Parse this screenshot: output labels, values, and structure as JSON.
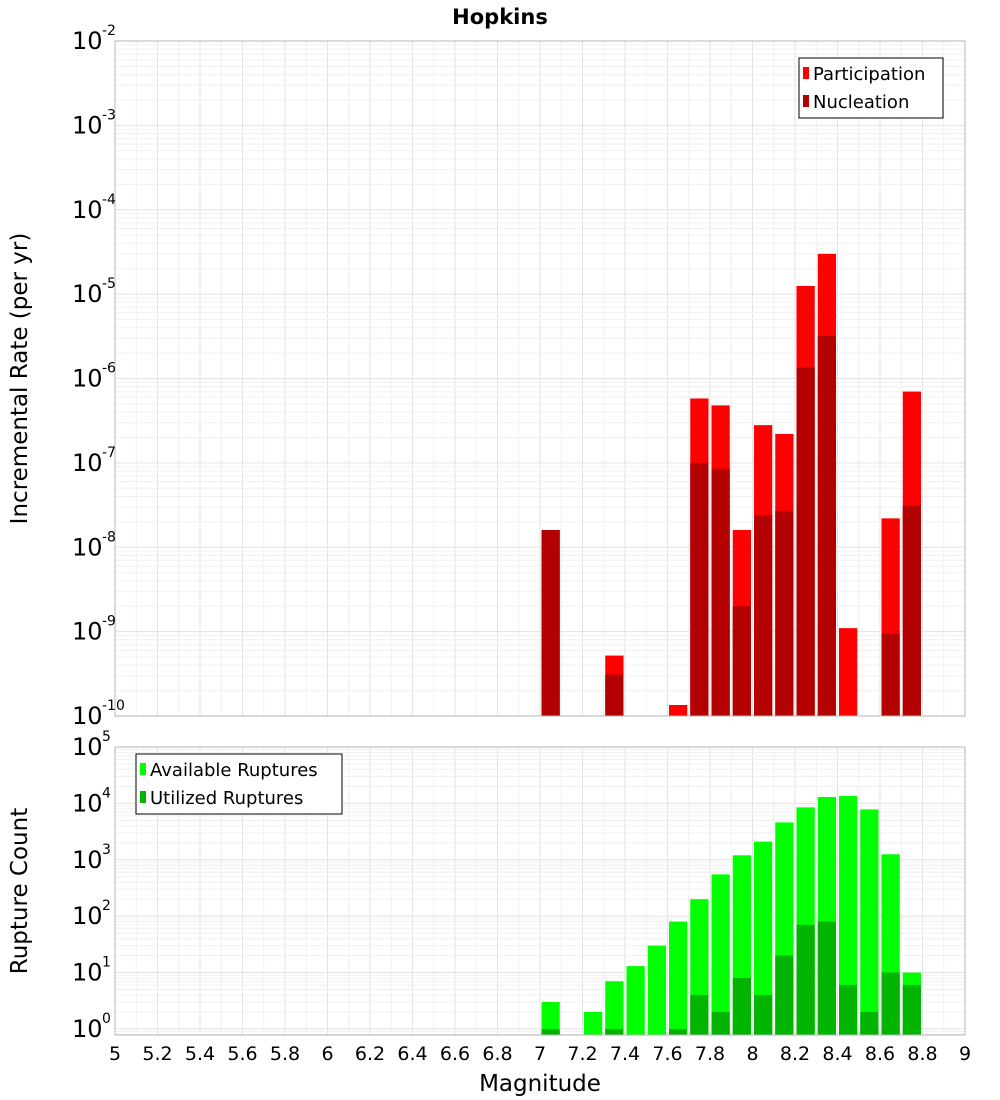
{
  "chart_data": [
    {
      "type": "bar",
      "title": "Hopkins",
      "xlabel": "",
      "ylabel": "Incremental Rate (per yr)",
      "yscale": "log",
      "ylim": [
        1e-10,
        0.01
      ],
      "xlim": [
        5,
        9
      ],
      "bar_width": 0.1,
      "legend_position": "top-right",
      "grid": true,
      "y_ticks": [
        {
          "base": "10",
          "exp": "-10"
        },
        {
          "base": "10",
          "exp": "-9"
        },
        {
          "base": "10",
          "exp": "-8"
        },
        {
          "base": "10",
          "exp": "-7"
        },
        {
          "base": "10",
          "exp": "-6"
        },
        {
          "base": "10",
          "exp": "-5"
        },
        {
          "base": "10",
          "exp": "-4"
        },
        {
          "base": "10",
          "exp": "-3"
        },
        {
          "base": "10",
          "exp": "-2"
        }
      ],
      "series": [
        {
          "name": "Participation",
          "color": "#ff0000",
          "x": [
            7.05,
            7.35,
            7.65,
            7.75,
            7.85,
            7.95,
            8.05,
            8.15,
            8.25,
            8.35,
            8.45,
            8.65,
            8.75
          ],
          "values": [
            1.6e-08,
            5.2e-10,
            1.35e-10,
            5.8e-07,
            4.8e-07,
            1.6e-08,
            2.8e-07,
            2.2e-07,
            1.25e-05,
            3e-05,
            1.1e-09,
            2.2e-08,
            7e-07
          ]
        },
        {
          "name": "Nucleation",
          "color": "#b30000",
          "x": [
            7.05,
            7.35,
            7.75,
            7.85,
            7.95,
            8.05,
            8.15,
            8.25,
            8.35,
            8.65,
            8.75
          ],
          "values": [
            1.6e-08,
            3.1e-10,
            1e-07,
            8.5e-08,
            2e-09,
            2.4e-08,
            2.7e-08,
            1.35e-06,
            3.2e-06,
            9.5e-10,
            3.1e-08
          ]
        }
      ]
    },
    {
      "type": "bar",
      "title": "",
      "xlabel": "Magnitude",
      "ylabel": "Rupture Count",
      "yscale": "log",
      "ylim": [
        0.78,
        100000
      ],
      "xlim": [
        5,
        9
      ],
      "bar_width": 0.1,
      "legend_position": "top-left",
      "grid": true,
      "x_ticks": [
        "5",
        "5.2",
        "5.4",
        "5.6",
        "5.8",
        "6",
        "6.2",
        "6.4",
        "6.6",
        "6.8",
        "7",
        "7.2",
        "7.4",
        "7.6",
        "7.8",
        "8",
        "8.2",
        "8.4",
        "8.6",
        "8.8",
        "9"
      ],
      "y_ticks": [
        {
          "base": "10",
          "exp": "0"
        },
        {
          "base": "10",
          "exp": "1"
        },
        {
          "base": "10",
          "exp": "2"
        },
        {
          "base": "10",
          "exp": "3"
        },
        {
          "base": "10",
          "exp": "4"
        },
        {
          "base": "10",
          "exp": "5"
        }
      ],
      "series": [
        {
          "name": "Available Ruptures",
          "color": "#00ff00",
          "x": [
            7.05,
            7.25,
            7.35,
            7.45,
            7.55,
            7.65,
            7.75,
            7.85,
            7.95,
            8.05,
            8.15,
            8.25,
            8.35,
            8.45,
            8.55,
            8.65,
            8.75
          ],
          "values": [
            3,
            2,
            7,
            13,
            30,
            80,
            200,
            550,
            1200,
            2100,
            4600,
            8500,
            13000,
            13500,
            7800,
            1250,
            10
          ]
        },
        {
          "name": "Utilized Ruptures",
          "color": "#00b400",
          "x": [
            7.05,
            7.35,
            7.65,
            7.75,
            7.85,
            7.95,
            8.05,
            8.15,
            8.25,
            8.35,
            8.45,
            8.55,
            8.65,
            8.75
          ],
          "values": [
            1,
            1,
            1,
            4,
            2,
            8,
            4,
            20,
            70,
            80,
            6,
            2,
            10,
            6
          ]
        }
      ]
    }
  ]
}
